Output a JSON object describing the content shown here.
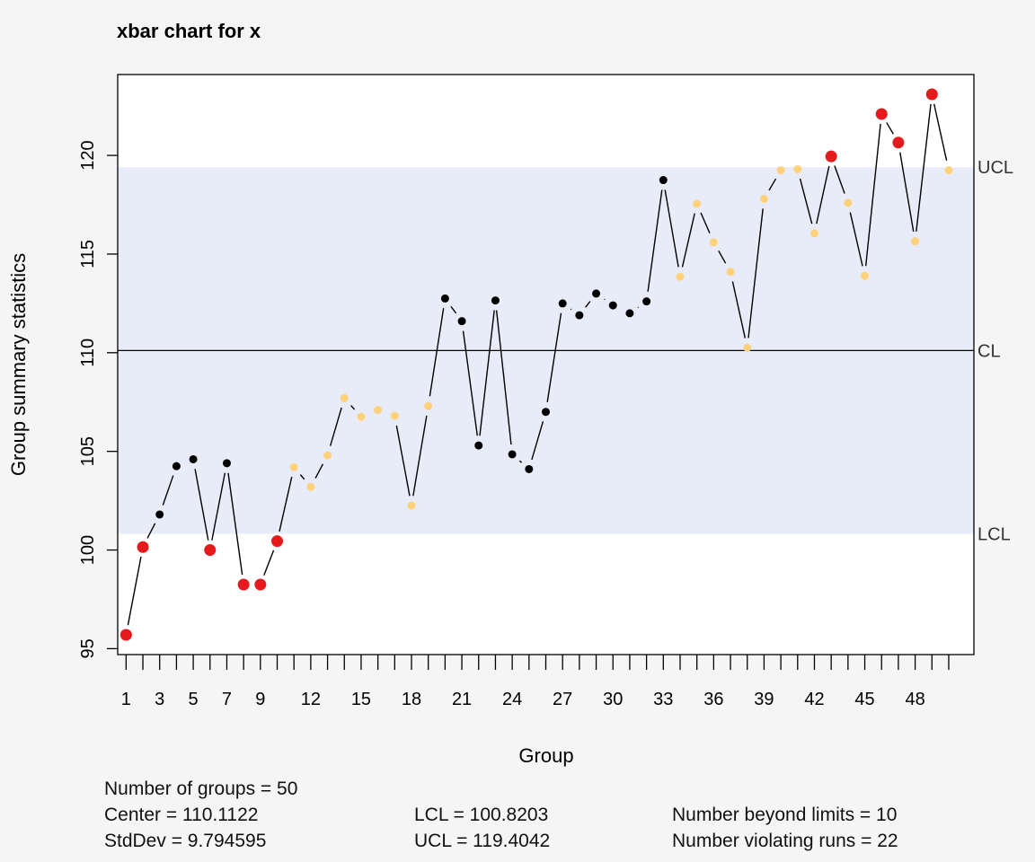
{
  "chart_data": {
    "type": "line",
    "title": "xbar chart for x",
    "xlabel": "Group",
    "ylabel": "Group summary statistics",
    "xlim": [
      0.5,
      51.5
    ],
    "ylim": [
      94.7,
      124.1
    ],
    "y_ticks": [
      95,
      100,
      105,
      110,
      115,
      120
    ],
    "x_ticks_labeled": [
      1,
      3,
      5,
      7,
      9,
      12,
      15,
      18,
      21,
      24,
      27,
      30,
      33,
      36,
      39,
      42,
      45,
      48
    ],
    "x_ticks_all": [
      1,
      2,
      3,
      4,
      5,
      6,
      7,
      8,
      9,
      10,
      11,
      12,
      13,
      14,
      15,
      16,
      17,
      18,
      19,
      20,
      21,
      22,
      23,
      24,
      25,
      26,
      27,
      28,
      29,
      30,
      31,
      32,
      33,
      34,
      35,
      36,
      37,
      38,
      39,
      40,
      41,
      42,
      43,
      44,
      45,
      46,
      47,
      48,
      49,
      50
    ],
    "center": 110.1122,
    "lcl": 100.8203,
    "ucl": 119.4042,
    "limit_labels": {
      "ucl": "UCL",
      "cl": "CL",
      "lcl": "LCL"
    },
    "colors": {
      "in_control": "#000000",
      "beyond_limits": "#e41a1c",
      "violating_runs": "#ffd17a",
      "limits_band": "#e7ecf8",
      "background": "#f5f5f5",
      "plot_background": "#ffffff"
    },
    "points": [
      {
        "x": 1,
        "y": 95.7,
        "status": "beyond_limits"
      },
      {
        "x": 2,
        "y": 100.15,
        "status": "beyond_limits"
      },
      {
        "x": 3,
        "y": 101.8,
        "status": "in_control"
      },
      {
        "x": 4,
        "y": 104.25,
        "status": "in_control"
      },
      {
        "x": 5,
        "y": 104.6,
        "status": "in_control"
      },
      {
        "x": 6,
        "y": 100.0,
        "status": "beyond_limits"
      },
      {
        "x": 7,
        "y": 104.4,
        "status": "in_control"
      },
      {
        "x": 8,
        "y": 98.25,
        "status": "beyond_limits"
      },
      {
        "x": 9,
        "y": 98.25,
        "status": "beyond_limits"
      },
      {
        "x": 10,
        "y": 100.45,
        "status": "beyond_limits"
      },
      {
        "x": 11,
        "y": 104.2,
        "status": "violating_runs"
      },
      {
        "x": 12,
        "y": 103.2,
        "status": "violating_runs"
      },
      {
        "x": 13,
        "y": 104.8,
        "status": "violating_runs"
      },
      {
        "x": 14,
        "y": 107.7,
        "status": "violating_runs"
      },
      {
        "x": 15,
        "y": 106.75,
        "status": "violating_runs"
      },
      {
        "x": 16,
        "y": 107.1,
        "status": "violating_runs"
      },
      {
        "x": 17,
        "y": 106.8,
        "status": "violating_runs"
      },
      {
        "x": 18,
        "y": 102.25,
        "status": "violating_runs"
      },
      {
        "x": 19,
        "y": 107.3,
        "status": "violating_runs"
      },
      {
        "x": 20,
        "y": 112.75,
        "status": "in_control"
      },
      {
        "x": 21,
        "y": 111.6,
        "status": "in_control"
      },
      {
        "x": 22,
        "y": 105.3,
        "status": "in_control"
      },
      {
        "x": 23,
        "y": 112.65,
        "status": "in_control"
      },
      {
        "x": 24,
        "y": 104.85,
        "status": "in_control"
      },
      {
        "x": 25,
        "y": 104.1,
        "status": "in_control"
      },
      {
        "x": 26,
        "y": 107.0,
        "status": "in_control"
      },
      {
        "x": 27,
        "y": 112.5,
        "status": "in_control"
      },
      {
        "x": 28,
        "y": 111.9,
        "status": "in_control"
      },
      {
        "x": 29,
        "y": 113.0,
        "status": "in_control"
      },
      {
        "x": 30,
        "y": 112.4,
        "status": "in_control"
      },
      {
        "x": 31,
        "y": 112.0,
        "status": "in_control"
      },
      {
        "x": 32,
        "y": 112.6,
        "status": "in_control"
      },
      {
        "x": 33,
        "y": 118.75,
        "status": "in_control"
      },
      {
        "x": 34,
        "y": 113.85,
        "status": "violating_runs"
      },
      {
        "x": 35,
        "y": 117.55,
        "status": "violating_runs"
      },
      {
        "x": 36,
        "y": 115.6,
        "status": "violating_runs"
      },
      {
        "x": 37,
        "y": 114.1,
        "status": "violating_runs"
      },
      {
        "x": 38,
        "y": 110.25,
        "status": "violating_runs"
      },
      {
        "x": 39,
        "y": 117.8,
        "status": "violating_runs"
      },
      {
        "x": 40,
        "y": 119.25,
        "status": "violating_runs"
      },
      {
        "x": 41,
        "y": 119.3,
        "status": "violating_runs"
      },
      {
        "x": 42,
        "y": 116.05,
        "status": "violating_runs"
      },
      {
        "x": 43,
        "y": 119.95,
        "status": "beyond_limits"
      },
      {
        "x": 44,
        "y": 117.6,
        "status": "violating_runs"
      },
      {
        "x": 45,
        "y": 113.9,
        "status": "violating_runs"
      },
      {
        "x": 46,
        "y": 122.1,
        "status": "beyond_limits"
      },
      {
        "x": 47,
        "y": 120.65,
        "status": "beyond_limits"
      },
      {
        "x": 48,
        "y": 115.65,
        "status": "violating_runs"
      },
      {
        "x": 49,
        "y": 123.1,
        "status": "beyond_limits"
      },
      {
        "x": 50,
        "y": 119.25,
        "status": "violating_runs"
      }
    ]
  },
  "stats": {
    "groups": "Number of groups = 50",
    "center": "Center = 110.1122",
    "stddev": "StdDev = 9.794595",
    "lcl": "LCL = 100.8203",
    "ucl": "UCL = 119.4042",
    "beyond": "Number beyond limits = 10",
    "violating": "Number violating runs = 22"
  }
}
